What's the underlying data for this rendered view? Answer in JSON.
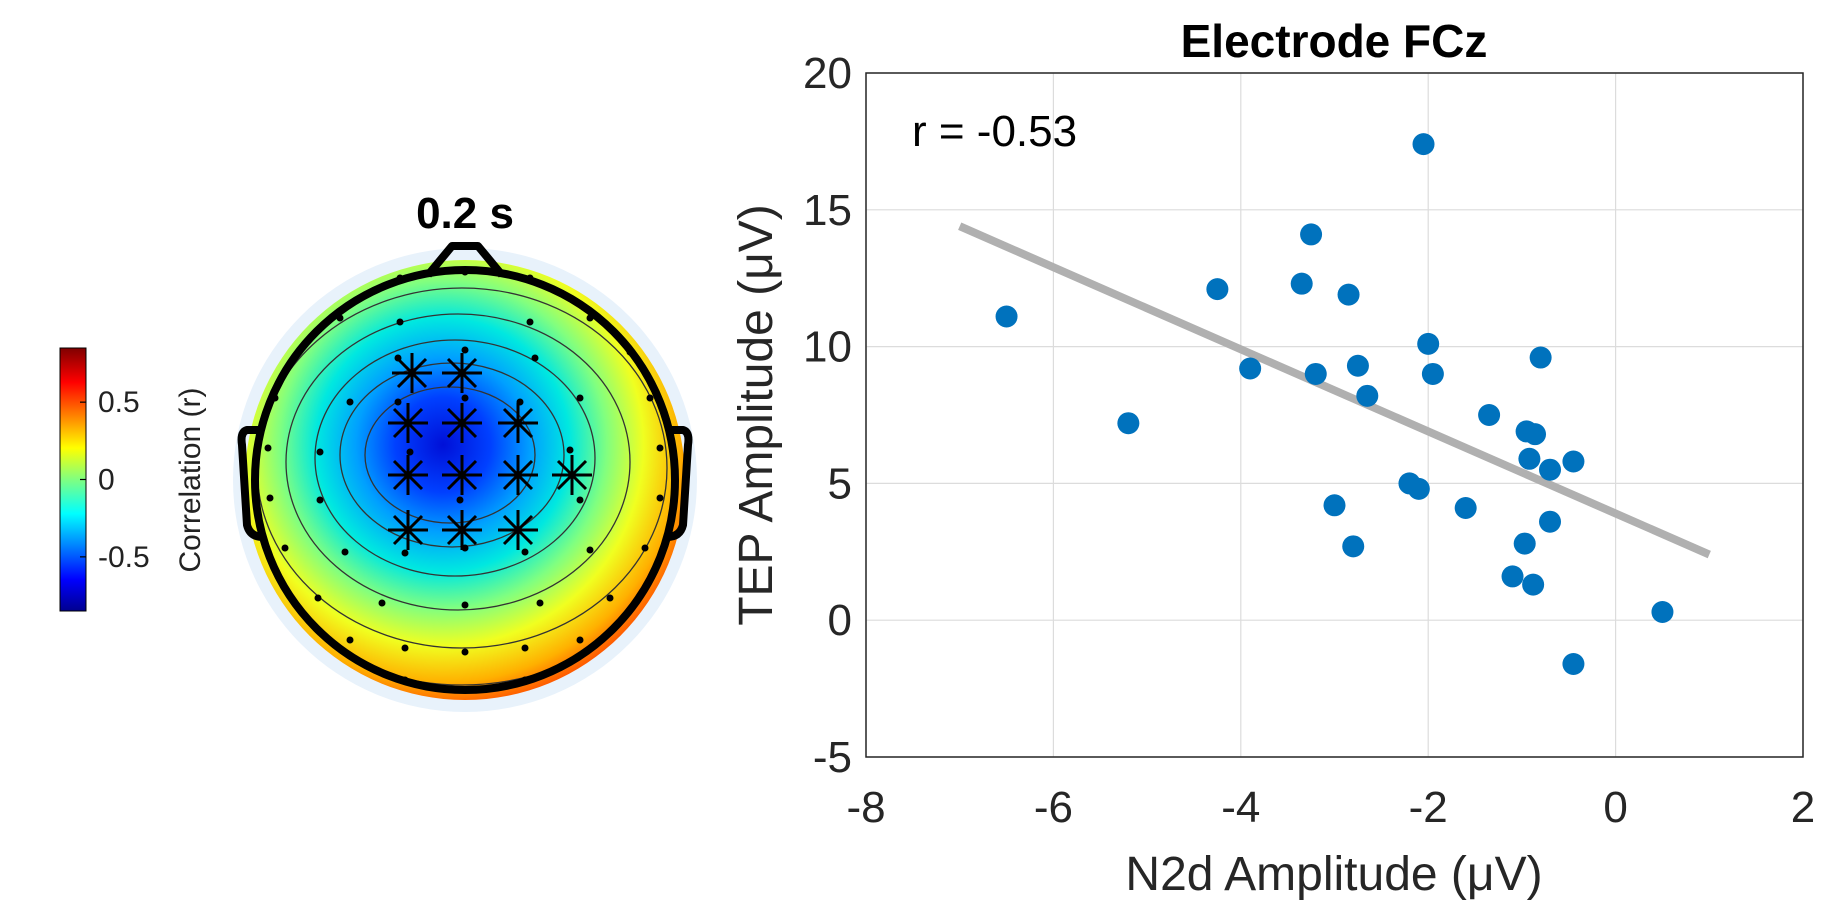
{
  "topomap": {
    "time_label": "0.2 s",
    "colorbar": {
      "label": "Correlation (r)",
      "ticks": [
        "0.5",
        "0",
        "-0.5"
      ],
      "tick_values": [
        0.5,
        0,
        -0.5
      ],
      "range": [
        -0.85,
        0.85
      ],
      "colormap": "jet"
    }
  },
  "chart_data": {
    "type": "scatter",
    "title": "Electrode FCz",
    "xlabel": "N2d Amplitude (μV)",
    "ylabel": "TEP Amplitude (μV)",
    "xlim": [
      -8,
      2
    ],
    "ylim": [
      -5,
      20
    ],
    "xticks": [
      "-8",
      "-6",
      "-4",
      "-2",
      "0",
      "2"
    ],
    "xtick_values": [
      -8,
      -6,
      -4,
      -2,
      0,
      2
    ],
    "yticks": [
      "-5",
      "0",
      "5",
      "10",
      "15",
      "20"
    ],
    "ytick_values": [
      -5,
      0,
      5,
      10,
      15,
      20
    ],
    "grid": true,
    "annotation": "r = -0.53",
    "point_color": "#0072BD",
    "fit_line_color": "#b0b0b0",
    "fit_line": {
      "x": [
        -7,
        1
      ],
      "y": [
        14.4,
        2.4
      ]
    },
    "points": [
      {
        "x": -6.5,
        "y": 11.1
      },
      {
        "x": -5.2,
        "y": 7.2
      },
      {
        "x": -4.25,
        "y": 12.1
      },
      {
        "x": -3.9,
        "y": 9.2
      },
      {
        "x": -3.35,
        "y": 12.3
      },
      {
        "x": -3.25,
        "y": 14.1
      },
      {
        "x": -3.2,
        "y": 9.0
      },
      {
        "x": -3.0,
        "y": 4.2
      },
      {
        "x": -2.85,
        "y": 11.9
      },
      {
        "x": -2.8,
        "y": 2.7
      },
      {
        "x": -2.75,
        "y": 9.3
      },
      {
        "x": -2.65,
        "y": 8.2
      },
      {
        "x": -2.2,
        "y": 5.0
      },
      {
        "x": -2.1,
        "y": 4.8
      },
      {
        "x": -2.05,
        "y": 17.4
      },
      {
        "x": -2.0,
        "y": 10.1
      },
      {
        "x": -1.95,
        "y": 9.0
      },
      {
        "x": -1.6,
        "y": 4.1
      },
      {
        "x": -1.35,
        "y": 7.5
      },
      {
        "x": -1.1,
        "y": 1.6
      },
      {
        "x": -0.97,
        "y": 2.8
      },
      {
        "x": -0.95,
        "y": 6.9
      },
      {
        "x": -0.92,
        "y": 5.9
      },
      {
        "x": -0.88,
        "y": 1.3
      },
      {
        "x": -0.86,
        "y": 6.8
      },
      {
        "x": -0.8,
        "y": 9.6
      },
      {
        "x": -0.7,
        "y": 5.5
      },
      {
        "x": -0.7,
        "y": 3.6
      },
      {
        "x": -0.45,
        "y": 5.8
      },
      {
        "x": -0.45,
        "y": -1.6
      },
      {
        "x": 0.5,
        "y": 0.3
      }
    ]
  }
}
